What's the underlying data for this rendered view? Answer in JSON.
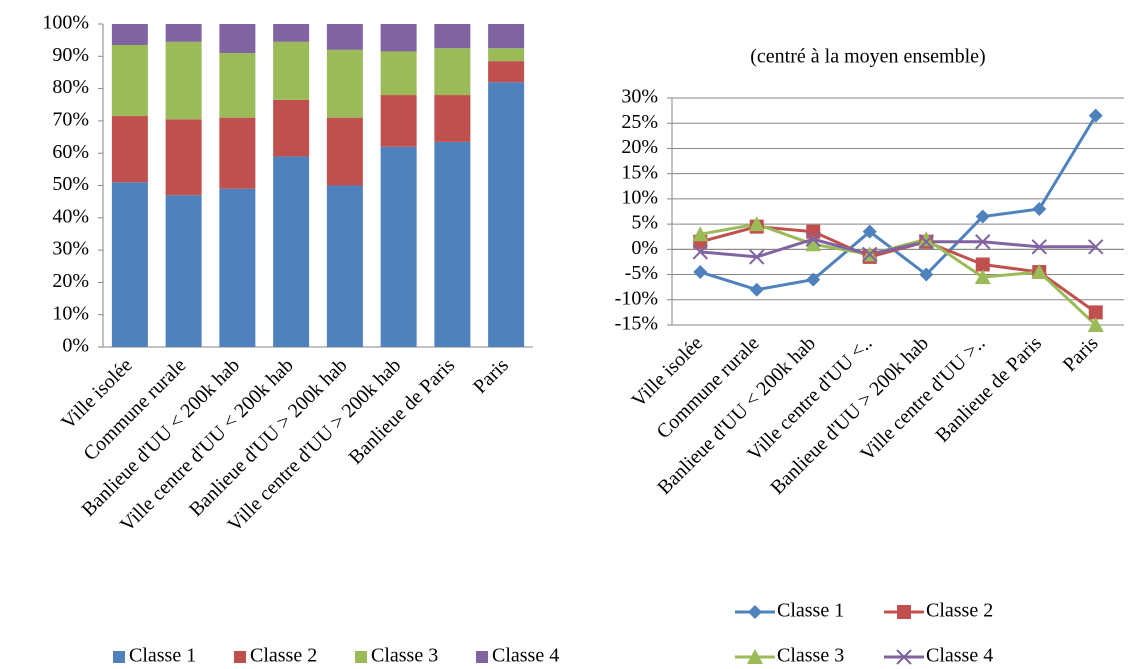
{
  "chart_data": [
    {
      "type": "stacked_bar",
      "categories": [
        "Ville isolée",
        "Commune rurale",
        "Banlieue d'UU < 200k hab",
        "Ville centre d'UU < 200k hab",
        "Banlieue d'UU > 200k hab",
        "Ville centre d'UU > 200k hab",
        "Banlieue de Paris",
        "Paris"
      ],
      "series": [
        {
          "name": "Classe 1",
          "color": "#4f81bd",
          "values": [
            51,
            47,
            49,
            59,
            50,
            62,
            63.5,
            82
          ]
        },
        {
          "name": "Classe 2",
          "color": "#c0504d",
          "values": [
            20.5,
            23.5,
            22,
            17.5,
            21,
            16,
            14.5,
            6.5
          ]
        },
        {
          "name": "Classe 3",
          "color": "#9bbb59",
          "values": [
            22,
            24,
            20,
            18,
            21,
            13.5,
            14.5,
            4
          ]
        },
        {
          "name": "Classe 4",
          "color": "#8064a2",
          "values": [
            6.5,
            5.5,
            9,
            5.5,
            8,
            8.5,
            7.5,
            7.5
          ]
        }
      ],
      "ylim": [
        0,
        100
      ],
      "yticks": [
        {
          "value": 0,
          "label": "0%"
        },
        {
          "value": 10,
          "label": "10%"
        },
        {
          "value": 20,
          "label": "20%"
        },
        {
          "value": 30,
          "label": "30%"
        },
        {
          "value": 40,
          "label": "40%"
        },
        {
          "value": 50,
          "label": "50%"
        },
        {
          "value": 60,
          "label": "60%"
        },
        {
          "value": 70,
          "label": "70%"
        },
        {
          "value": 80,
          "label": "80%"
        },
        {
          "value": 90,
          "label": "90%"
        },
        {
          "value": 100,
          "label": "100%"
        }
      ],
      "grid": false,
      "legend": "bottom"
    },
    {
      "type": "line",
      "title": "(centré à la moyen ensemble)",
      "categories": [
        "Ville isolée",
        "Commune rurale",
        "Banlieue d'UU < 200k hab",
        "Ville centre d'UU <..",
        "Banlieue d'UU > 200k hab",
        "Ville centre d'UU >..",
        "Banlieue de Paris",
        "Paris"
      ],
      "series": [
        {
          "name": "Classe 1",
          "color": "#4f81bd",
          "marker": "diamond",
          "values": [
            -4.5,
            -8,
            -6,
            3.5,
            -5,
            6.5,
            8,
            26.5
          ]
        },
        {
          "name": "Classe 2",
          "color": "#c0504d",
          "marker": "square",
          "values": [
            1.5,
            4.5,
            3.5,
            -1.5,
            1.5,
            -3,
            -4.5,
            -12.5
          ]
        },
        {
          "name": "Classe 3",
          "color": "#9bbb59",
          "marker": "triangle",
          "values": [
            3,
            5,
            1,
            -1,
            2,
            -5.5,
            -4.5,
            -15
          ]
        },
        {
          "name": "Classe 4",
          "color": "#8064a2",
          "marker": "x",
          "values": [
            -0.5,
            -1.5,
            2,
            -1,
            1.5,
            1.5,
            0.5,
            0.5
          ]
        }
      ],
      "ylim": [
        -15,
        30
      ],
      "yticks": [
        {
          "value": -15,
          "label": "-15%"
        },
        {
          "value": -10,
          "label": "-10%"
        },
        {
          "value": -5,
          "label": "-5%"
        },
        {
          "value": 0,
          "label": "0%"
        },
        {
          "value": 5,
          "label": "5%"
        },
        {
          "value": 10,
          "label": "10%"
        },
        {
          "value": 15,
          "label": "15%"
        },
        {
          "value": 20,
          "label": "20%"
        },
        {
          "value": 25,
          "label": "25%"
        },
        {
          "value": 30,
          "label": "30%"
        }
      ],
      "grid": true,
      "legend": "bottom"
    }
  ]
}
